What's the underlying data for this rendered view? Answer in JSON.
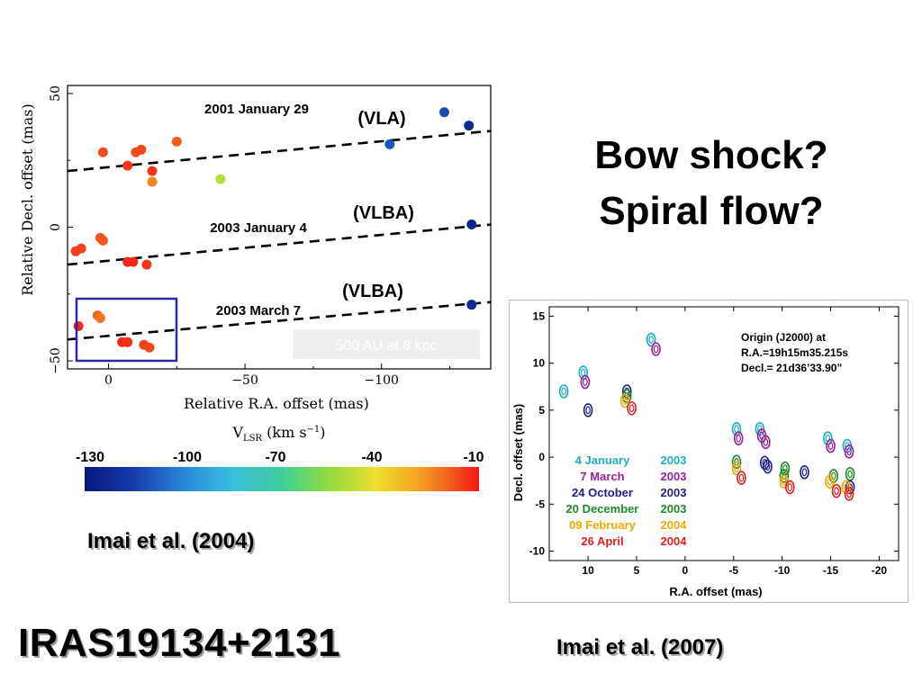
{
  "slide": {
    "title": "IRAS19134+2131",
    "question_line1": "Bow shock?",
    "question_line2": "Spiral flow?",
    "cite_2004": "Imai et al. (2004)",
    "cite_2007": "Imai et al. (2007)"
  },
  "chart_data": [
    {
      "type": "scatter",
      "x_ticks": [
        "0",
        "−50",
        "−100"
      ],
      "y_ticks": [
        "50",
        "0",
        "−50"
      ],
      "xlabel": "Relative R.A. offset (mas)",
      "ylabel": "Relative Decl. offset (mas)",
      "xlim": [
        15,
        -140
      ],
      "ylim": [
        -53,
        53
      ],
      "epochs": [
        {
          "label": "2001 January 29",
          "instrument": "(VLA)",
          "line": [
            [
              15,
              21
            ],
            [
              -140,
              36
            ]
          ]
        },
        {
          "label": "2003 January 4",
          "instrument": "(VLBA)",
          "line": [
            [
              15,
              -14
            ],
            [
              -140,
              1
            ]
          ]
        },
        {
          "label": "2003 March 7",
          "instrument": "(VLBA)",
          "line": [
            [
              15,
              -42
            ],
            [
              -140,
              -28
            ]
          ]
        }
      ],
      "points": [
        {
          "x": 2,
          "y": 28,
          "v": -17
        },
        {
          "x": -10,
          "y": 28,
          "v": -17
        },
        {
          "x": -12,
          "y": 29,
          "v": -16
        },
        {
          "x": -7,
          "y": 23,
          "v": -14
        },
        {
          "x": -25,
          "y": 32,
          "v": -19
        },
        {
          "x": -16,
          "y": 21,
          "v": -14
        },
        {
          "x": -16,
          "y": 17,
          "v": -24
        },
        {
          "x": -41,
          "y": 18,
          "v": -50
        },
        {
          "x": -103,
          "y": 31,
          "v": -110
        },
        {
          "x": -123,
          "y": 43,
          "v": -112
        },
        {
          "x": -132,
          "y": 38,
          "v": -123
        },
        {
          "x": 12,
          "y": -9,
          "v": -15
        },
        {
          "x": 10,
          "y": -8,
          "v": -15
        },
        {
          "x": 3,
          "y": -4,
          "v": -18
        },
        {
          "x": 2,
          "y": -5,
          "v": -18
        },
        {
          "x": -7,
          "y": -13,
          "v": -12
        },
        {
          "x": -9,
          "y": -13,
          "v": -12
        },
        {
          "x": -14,
          "y": -14,
          "v": -14
        },
        {
          "x": -133,
          "y": 1,
          "v": -125
        },
        {
          "x": 11,
          "y": -37,
          "v": -12
        },
        {
          "x": 4,
          "y": -33,
          "v": -20
        },
        {
          "x": 3,
          "y": -34,
          "v": -22
        },
        {
          "x": -5,
          "y": -43,
          "v": -12
        },
        {
          "x": -7,
          "y": -43,
          "v": -13
        },
        {
          "x": -13,
          "y": -44,
          "v": -15
        },
        {
          "x": -15,
          "y": -45,
          "v": -16
        },
        {
          "x": -133,
          "y": -29,
          "v": -122
        }
      ],
      "box_label": "500 AU at 8 kpc"
    },
    {
      "type": "colorbar",
      "label": "V_LSR (km s^-1)",
      "ticks": [
        "-130",
        "-100",
        "-70",
        "-40",
        "-10"
      ],
      "range": [
        -130,
        -10
      ]
    },
    {
      "type": "contour",
      "xlabel": "R.A. offset (mas)",
      "ylabel": "Decl. offset (mas)",
      "x_ticks": [
        "10",
        "5",
        "0",
        "-5",
        "-10",
        "-15",
        "-20"
      ],
      "y_ticks": [
        "15",
        "10",
        "5",
        "0",
        "-5",
        "-10"
      ],
      "xlim": [
        14,
        -22
      ],
      "ylim": [
        -11,
        16
      ],
      "origin_lines": [
        "Origin (J2000) at",
        "R.A.=19h15m35.215s",
        "Decl.= 21d36’33.90”"
      ],
      "legend": [
        {
          "date": "4 January",
          "year": "2003",
          "color": "#1aaec4"
        },
        {
          "date": "7 March",
          "year": "2003",
          "color": "#9a1f9a"
        },
        {
          "date": "24 October",
          "year": "2003",
          "color": "#20208a"
        },
        {
          "date": "20 December",
          "year": "2003",
          "color": "#1f8a2a"
        },
        {
          "date": "09 February",
          "year": "2004",
          "color": "#f0a800"
        },
        {
          "date": "26 April",
          "year": "2004",
          "color": "#e02020"
        }
      ],
      "features": [
        {
          "x": 12.5,
          "y": 7,
          "e": 0
        },
        {
          "x": 10.5,
          "y": 9,
          "e": 0
        },
        {
          "x": 10.3,
          "y": 8,
          "e": 1
        },
        {
          "x": 10,
          "y": 5,
          "e": 2
        },
        {
          "x": 6,
          "y": 7,
          "e": 2
        },
        {
          "x": 6,
          "y": 6.5,
          "e": 3
        },
        {
          "x": 6.2,
          "y": 6,
          "e": 4
        },
        {
          "x": 5.5,
          "y": 5.2,
          "e": 5
        },
        {
          "x": 3.5,
          "y": 12.5,
          "e": 0
        },
        {
          "x": 3,
          "y": 11.5,
          "e": 1
        },
        {
          "x": -5.3,
          "y": 3,
          "e": 0
        },
        {
          "x": -5.5,
          "y": 2,
          "e": 1
        },
        {
          "x": -7.7,
          "y": 3,
          "e": 0
        },
        {
          "x": -7.9,
          "y": 2.3,
          "e": 1
        },
        {
          "x": -8.3,
          "y": 1.6,
          "e": 1
        },
        {
          "x": -14.7,
          "y": 2,
          "e": 0
        },
        {
          "x": -15,
          "y": 1.2,
          "e": 1
        },
        {
          "x": -16.7,
          "y": 1.2,
          "e": 0
        },
        {
          "x": -16.9,
          "y": 0.6,
          "e": 1
        },
        {
          "x": -5.3,
          "y": -0.5,
          "e": 3
        },
        {
          "x": -5.3,
          "y": -1.2,
          "e": 4
        },
        {
          "x": -5.8,
          "y": -2.2,
          "e": 5
        },
        {
          "x": -8.2,
          "y": -0.6,
          "e": 2
        },
        {
          "x": -8.5,
          "y": -1,
          "e": 2
        },
        {
          "x": -10.3,
          "y": -1.2,
          "e": 3
        },
        {
          "x": -10.2,
          "y": -2,
          "e": 3
        },
        {
          "x": -10.2,
          "y": -2.6,
          "e": 4
        },
        {
          "x": -10.8,
          "y": -3.2,
          "e": 5
        },
        {
          "x": -12.3,
          "y": -1.6,
          "e": 2
        },
        {
          "x": -15.3,
          "y": -2,
          "e": 3
        },
        {
          "x": -14.9,
          "y": -2.6,
          "e": 4
        },
        {
          "x": -15.6,
          "y": -3.6,
          "e": 5
        },
        {
          "x": -17,
          "y": -1.8,
          "e": 3
        },
        {
          "x": -17,
          "y": -3.2,
          "e": 2
        },
        {
          "x": -16.6,
          "y": -3.2,
          "e": 4
        },
        {
          "x": -16.9,
          "y": -3.9,
          "e": 5
        }
      ]
    }
  ]
}
